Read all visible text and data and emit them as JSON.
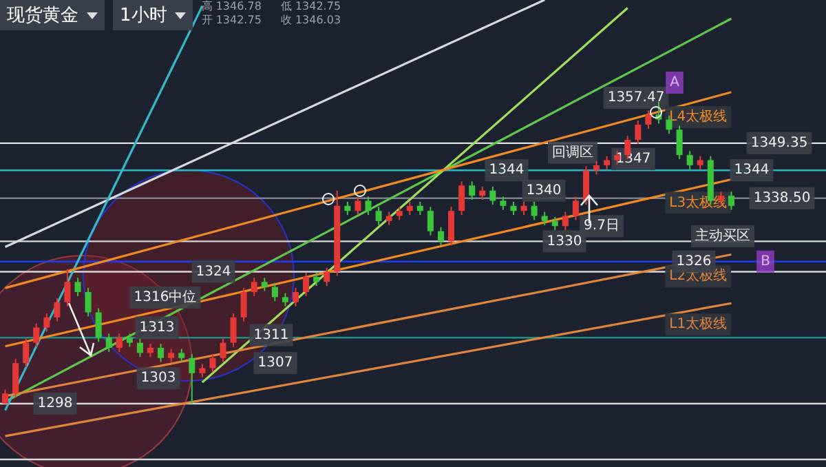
{
  "chart_data": {
    "type": "candlestick",
    "title": "现货黄金",
    "subtitle": "1小时",
    "categories": [
      null,
      null,
      null,
      null,
      null,
      null,
      null,
      null,
      null,
      null,
      null,
      null,
      null,
      null,
      null,
      null,
      null,
      null,
      null,
      null,
      null,
      null,
      null,
      null,
      null,
      null,
      null,
      null,
      null,
      null,
      null,
      null,
      null,
      null,
      null,
      null,
      null,
      null,
      null,
      null,
      null,
      null,
      null,
      null,
      null,
      null,
      null,
      null,
      null,
      null,
      null,
      null,
      null,
      null,
      null,
      null,
      null,
      null,
      null,
      null,
      null,
      null,
      null,
      null,
      null,
      null,
      null,
      null,
      null,
      null,
      null
    ],
    "ohlc": [
      [
        1298,
        1300.8,
        1298,
        1300
      ],
      [
        1300,
        1306.8,
        1299.2,
        1306
      ],
      [
        1306,
        1310.8,
        1305.2,
        1310
      ],
      [
        1310,
        1313.8,
        1309.2,
        1313
      ],
      [
        1313,
        1315.8,
        1312.2,
        1315
      ],
      [
        1315,
        1318.8,
        1314.2,
        1318
      ],
      [
        1318,
        1324.5,
        1317.2,
        1322
      ],
      [
        1322,
        1322.8,
        1319.2,
        1320
      ],
      [
        1320,
        1320.8,
        1315.2,
        1316
      ],
      [
        1316,
        1316.8,
        1310.2,
        1311
      ],
      [
        1311,
        1311.8,
        1308.2,
        1309
      ],
      [
        1309,
        1311.8,
        1308.2,
        1311
      ],
      [
        1311,
        1311.8,
        1309.2,
        1310
      ],
      [
        1310,
        1310.8,
        1307.2,
        1308
      ],
      [
        1308,
        1309.8,
        1307.2,
        1309
      ],
      [
        1309,
        1309.8,
        1306.2,
        1307
      ],
      [
        1307,
        1308.8,
        1306.2,
        1308
      ],
      [
        1308,
        1308.8,
        1306.2,
        1307
      ],
      [
        1307,
        1307.8,
        1298,
        1304
      ],
      [
        1304,
        1305.8,
        1303.2,
        1305
      ],
      [
        1305,
        1307.8,
        1304.2,
        1307
      ],
      [
        1307,
        1310.8,
        1306.2,
        1310
      ],
      [
        1310,
        1315.8,
        1309.2,
        1315
      ],
      [
        1315,
        1320.8,
        1314.2,
        1320
      ],
      [
        1320,
        1322.8,
        1319.2,
        1322
      ],
      [
        1322,
        1322.8,
        1320.2,
        1321
      ],
      [
        1321,
        1321.8,
        1318.2,
        1319
      ],
      [
        1319,
        1319.8,
        1317.2,
        1318
      ],
      [
        1318,
        1320.8,
        1317.2,
        1320
      ],
      [
        1320,
        1323.8,
        1319.2,
        1323
      ],
      [
        1323,
        1323.8,
        1321.2,
        1322
      ],
      [
        1322,
        1324.8,
        1321.2,
        1324
      ],
      [
        1324,
        1340,
        1323.2,
        1337
      ],
      [
        1337,
        1337.8,
        1335.2,
        1336
      ],
      [
        1336,
        1338.8,
        1335.2,
        1338
      ],
      [
        1338,
        1338.8,
        1335.2,
        1336
      ],
      [
        1336,
        1336.8,
        1333.2,
        1334
      ],
      [
        1334,
        1335.8,
        1333.2,
        1335
      ],
      [
        1335,
        1336.8,
        1334.2,
        1336
      ],
      [
        1336,
        1337.8,
        1335.2,
        1337
      ],
      [
        1337,
        1337.8,
        1335.2,
        1336
      ],
      [
        1336,
        1336.8,
        1331.2,
        1332
      ],
      [
        1332,
        1332.8,
        1329.2,
        1330
      ],
      [
        1330,
        1336.8,
        1329.2,
        1336
      ],
      [
        1336,
        1341.8,
        1335.2,
        1341
      ],
      [
        1341,
        1341.8,
        1338.2,
        1339
      ],
      [
        1339,
        1340.8,
        1338.2,
        1340
      ],
      [
        1340,
        1340.8,
        1337.2,
        1338
      ],
      [
        1338,
        1338.8,
        1336.2,
        1337
      ],
      [
        1337,
        1337.8,
        1335.2,
        1336
      ],
      [
        1336,
        1337.8,
        1335.2,
        1337
      ],
      [
        1337,
        1337.8,
        1334.2,
        1335
      ],
      [
        1335,
        1335.8,
        1333.2,
        1334
      ],
      [
        1334,
        1334.8,
        1332.2,
        1333
      ],
      [
        1333,
        1335.8,
        1332.2,
        1335
      ],
      [
        1335,
        1338.8,
        1334.2,
        1338
      ],
      [
        1338,
        1344.8,
        1337.2,
        1344
      ],
      [
        1344,
        1345.8,
        1343.2,
        1345
      ],
      [
        1345,
        1346.8,
        1344.2,
        1346
      ],
      [
        1346,
        1347.8,
        1345.2,
        1347
      ],
      [
        1347,
        1350.8,
        1346.2,
        1350
      ],
      [
        1350,
        1353.8,
        1349.2,
        1353
      ],
      [
        1353,
        1355.8,
        1352.2,
        1355
      ],
      [
        1355,
        1357.47,
        1353.2,
        1354
      ],
      [
        1354,
        1354.8,
        1351.2,
        1352
      ],
      [
        1352,
        1352.8,
        1346.2,
        1347
      ],
      [
        1347,
        1347.8,
        1344.2,
        1345
      ],
      [
        1345,
        1346.8,
        1344.2,
        1346
      ],
      [
        1346,
        1346.8,
        1337.2,
        1338
      ],
      [
        1338,
        1339.8,
        1337.2,
        1339
      ],
      [
        1339,
        1339.8,
        1336.2,
        1337
      ]
    ],
    "colors": [
      "#e53935",
      "#e53935",
      "#e53935",
      "#e53935",
      "#e53935",
      "#e53935",
      "#e53935",
      "#3cc43c",
      "#3cc43c",
      "#3cc43c",
      "#3cc43c",
      "#e53935",
      "#3cc43c",
      "#3cc43c",
      "#e53935",
      "#3cc43c",
      "#e53935",
      "#3cc43c",
      "#3cc43c",
      "#e53935",
      "#e53935",
      "#e53935",
      "#e53935",
      "#e53935",
      "#e53935",
      "#3cc43c",
      "#3cc43c",
      "#3cc43c",
      "#e53935",
      "#e53935",
      "#3cc43c",
      "#e53935",
      "#e53935",
      "#3cc43c",
      "#e53935",
      "#3cc43c",
      "#3cc43c",
      "#e53935",
      "#e53935",
      "#e53935",
      "#3cc43c",
      "#3cc43c",
      "#3cc43c",
      "#e53935",
      "#e53935",
      "#3cc43c",
      "#e53935",
      "#3cc43c",
      "#3cc43c",
      "#3cc43c",
      "#e53935",
      "#3cc43c",
      "#3cc43c",
      "#3cc43c",
      "#e53935",
      "#e53935",
      "#e53935",
      "#e53935",
      "#e53935",
      "#e53935",
      "#e53935",
      "#e53935",
      "#e53935",
      "#3cc43c",
      "#3cc43c",
      "#3cc43c",
      "#3cc43c",
      "#e53935",
      "#3cc43c",
      "#e53935",
      "#3cc43c"
    ],
    "series": [
      {
        "type": "line",
        "name": "L4太极线",
        "color": "#f28a22",
        "values": [
          1320.8,
          null,
          null,
          null,
          null,
          null,
          null,
          null,
          null,
          null,
          null,
          null,
          null,
          null,
          null,
          null,
          null,
          null,
          null,
          null,
          null,
          null,
          null,
          null,
          null,
          null,
          null,
          null,
          null,
          null,
          null,
          null,
          null,
          null,
          null,
          null,
          null,
          null,
          null,
          null,
          null,
          null,
          null,
          null,
          null,
          null,
          null,
          null,
          null,
          null,
          null,
          null,
          null,
          null,
          null,
          null,
          null,
          null,
          null,
          null,
          null,
          null,
          null,
          null,
          null,
          null,
          null,
          null,
          null,
          null,
          1359.4
        ]
      },
      {
        "type": "line",
        "name": "L3太极线",
        "color": "#f28a22",
        "values": [
          1309.3,
          null,
          null,
          null,
          null,
          null,
          null,
          null,
          null,
          null,
          null,
          null,
          null,
          null,
          null,
          null,
          null,
          null,
          null,
          null,
          null,
          null,
          null,
          null,
          null,
          null,
          null,
          null,
          null,
          null,
          null,
          null,
          null,
          null,
          null,
          null,
          null,
          null,
          null,
          null,
          null,
          null,
          null,
          null,
          null,
          null,
          null,
          null,
          null,
          null,
          null,
          null,
          null,
          null,
          null,
          null,
          null,
          null,
          null,
          null,
          null,
          null,
          null,
          null,
          null,
          null,
          null,
          null,
          null,
          null,
          1342.2
        ]
      },
      {
        "type": "line",
        "name": "L2太极线",
        "color": "#e0863c",
        "values": [
          1299.5,
          null,
          null,
          null,
          null,
          null,
          null,
          null,
          null,
          null,
          null,
          null,
          null,
          null,
          null,
          null,
          null,
          null,
          null,
          null,
          null,
          null,
          null,
          null,
          null,
          null,
          null,
          null,
          null,
          null,
          null,
          null,
          null,
          null,
          null,
          null,
          null,
          null,
          null,
          null,
          null,
          null,
          null,
          null,
          null,
          null,
          null,
          null,
          null,
          null,
          null,
          null,
          null,
          null,
          null,
          null,
          null,
          null,
          null,
          null,
          null,
          null,
          null,
          null,
          null,
          null,
          null,
          null,
          null,
          null,
          1327.4
        ]
      },
      {
        "type": "line",
        "name": "L1太极线",
        "color": "#e0863c",
        "values": [
          1291.6,
          null,
          null,
          null,
          null,
          null,
          null,
          null,
          null,
          null,
          null,
          null,
          null,
          null,
          null,
          null,
          null,
          null,
          null,
          null,
          null,
          null,
          null,
          null,
          null,
          null,
          null,
          null,
          null,
          null,
          null,
          null,
          null,
          null,
          null,
          null,
          null,
          null,
          null,
          null,
          null,
          null,
          null,
          null,
          null,
          null,
          null,
          null,
          null,
          null,
          null,
          null,
          null,
          null,
          null,
          null,
          null,
          null,
          null,
          null,
          null,
          null,
          null,
          null,
          null,
          null,
          null,
          null,
          null,
          null,
          1317.8
        ]
      },
      {
        "type": "line",
        "color": "#35b8c8",
        "values": [
          1296.7,
          null,
          null,
          null,
          null,
          null,
          null,
          null,
          null,
          null,
          null,
          null,
          null,
          null,
          null,
          null,
          null,
          null,
          null,
          1376.4,
          null,
          null,
          null,
          null,
          null,
          null,
          null,
          null,
          null,
          null,
          null,
          null,
          null,
          null,
          null,
          null,
          null,
          null,
          null,
          null,
          null,
          null,
          null,
          null,
          null,
          null,
          null,
          null,
          null,
          null,
          null,
          null,
          null,
          null,
          null,
          null,
          null,
          null,
          null,
          null,
          null,
          null,
          null,
          null,
          null,
          null,
          null,
          null,
          null,
          null,
          null
        ]
      },
      {
        "type": "line",
        "color": "#d8d8e0",
        "values": [
          1328.9,
          null,
          null,
          null,
          null,
          null,
          null,
          null,
          null,
          null,
          null,
          null,
          null,
          null,
          null,
          null,
          null,
          null,
          null,
          null,
          null,
          null,
          null,
          null,
          null,
          null,
          null,
          null,
          null,
          null,
          null,
          null,
          null,
          null,
          null,
          null,
          null,
          null,
          null,
          null,
          null,
          null,
          null,
          null,
          null,
          null,
          null,
          null,
          null,
          null,
          null,
          null,
          1377.6,
          null,
          null,
          null,
          null,
          null,
          null,
          null,
          null,
          null,
          null,
          null,
          null,
          null,
          null,
          null,
          null,
          null,
          null
        ]
      },
      {
        "type": "line",
        "color": "#9ee05a",
        "values": [
          null,
          null,
          null,
          null,
          null,
          null,
          null,
          null,
          null,
          null,
          null,
          null,
          null,
          null,
          null,
          null,
          null,
          null,
          null,
          1302.2,
          null,
          null,
          null,
          null,
          null,
          null,
          null,
          null,
          null,
          null,
          null,
          null,
          null,
          null,
          null,
          null,
          null,
          null,
          null,
          null,
          null,
          null,
          null,
          null,
          null,
          null,
          null,
          null,
          null,
          null,
          null,
          null,
          null,
          null,
          null,
          null,
          null,
          null,
          null,
          null,
          1376.0,
          null,
          null,
          null,
          null,
          null,
          null,
          null,
          null,
          null,
          null
        ]
      },
      {
        "type": "line",
        "color": "#5ec84a",
        "values": [
          1298.4,
          null,
          null,
          null,
          null,
          null,
          null,
          null,
          null,
          null,
          null,
          null,
          null,
          null,
          null,
          null,
          null,
          null,
          null,
          null,
          null,
          null,
          null,
          null,
          null,
          null,
          null,
          null,
          null,
          null,
          null,
          null,
          null,
          null,
          null,
          null,
          null,
          null,
          null,
          null,
          null,
          null,
          null,
          null,
          null,
          null,
          null,
          null,
          null,
          null,
          null,
          null,
          null,
          null,
          null,
          null,
          null,
          null,
          null,
          null,
          null,
          null,
          null,
          null,
          null,
          null,
          null,
          null,
          null,
          null,
          1373.9
        ]
      }
    ],
    "ref_lines": [
      {
        "axis": "y",
        "value": 1349.35,
        "color": "#e0e0e0"
      },
      {
        "axis": "y",
        "value": 1344,
        "color": "#2ab7c4"
      },
      {
        "axis": "y",
        "value": 1338.5,
        "color": "#7a808c"
      },
      {
        "axis": "y",
        "value": 1330,
        "color": "#d8d8d8"
      },
      {
        "axis": "y",
        "value": 1326,
        "color": "#1f3cf2"
      },
      {
        "axis": "y",
        "value": 1324,
        "color": "#d8d8d8"
      },
      {
        "axis": "y",
        "value": 1311,
        "color": "#1f8f86"
      },
      {
        "axis": "y",
        "value": 1298,
        "color": "#d8d8d8"
      },
      {
        "axis": "y",
        "value": 1287,
        "color": "#d8d8d8"
      }
    ],
    "annotations": [
      "高 1346.78",
      "开 1342.75",
      "低 1342.75",
      "收 1346.03",
      "1357.47",
      "A",
      "1316中位",
      {
        "text": "1349.35",
        "y": 1349.35
      },
      {
        "text": "1344",
        "y": 1344
      },
      {
        "text": "1344",
        "y": 1344
      },
      {
        "text": "回调区",
        "y": 1347.5
      },
      {
        "text": "1347",
        "y": 1346.2
      },
      {
        "text": "1340",
        "y": 1340
      },
      {
        "text": "1338.50",
        "y": 1338.5
      },
      {
        "text": "9.7日",
        "y": 1333
      },
      {
        "text": "1330",
        "y": 1330
      },
      {
        "text": "主动买区",
        "y": 1331
      },
      {
        "text": "1326",
        "y": 1326
      },
      {
        "text": "B",
        "y": 1326
      },
      {
        "text": "1324",
        "y": 1324
      },
      {
        "text": "1313",
        "y": 1313
      },
      {
        "text": "1311",
        "y": 1311.5
      },
      {
        "text": "1303",
        "y": 1303
      },
      {
        "text": "1307",
        "y": 1306
      },
      {
        "text": "1298",
        "y": 1298
      }
    ]
  }
}
